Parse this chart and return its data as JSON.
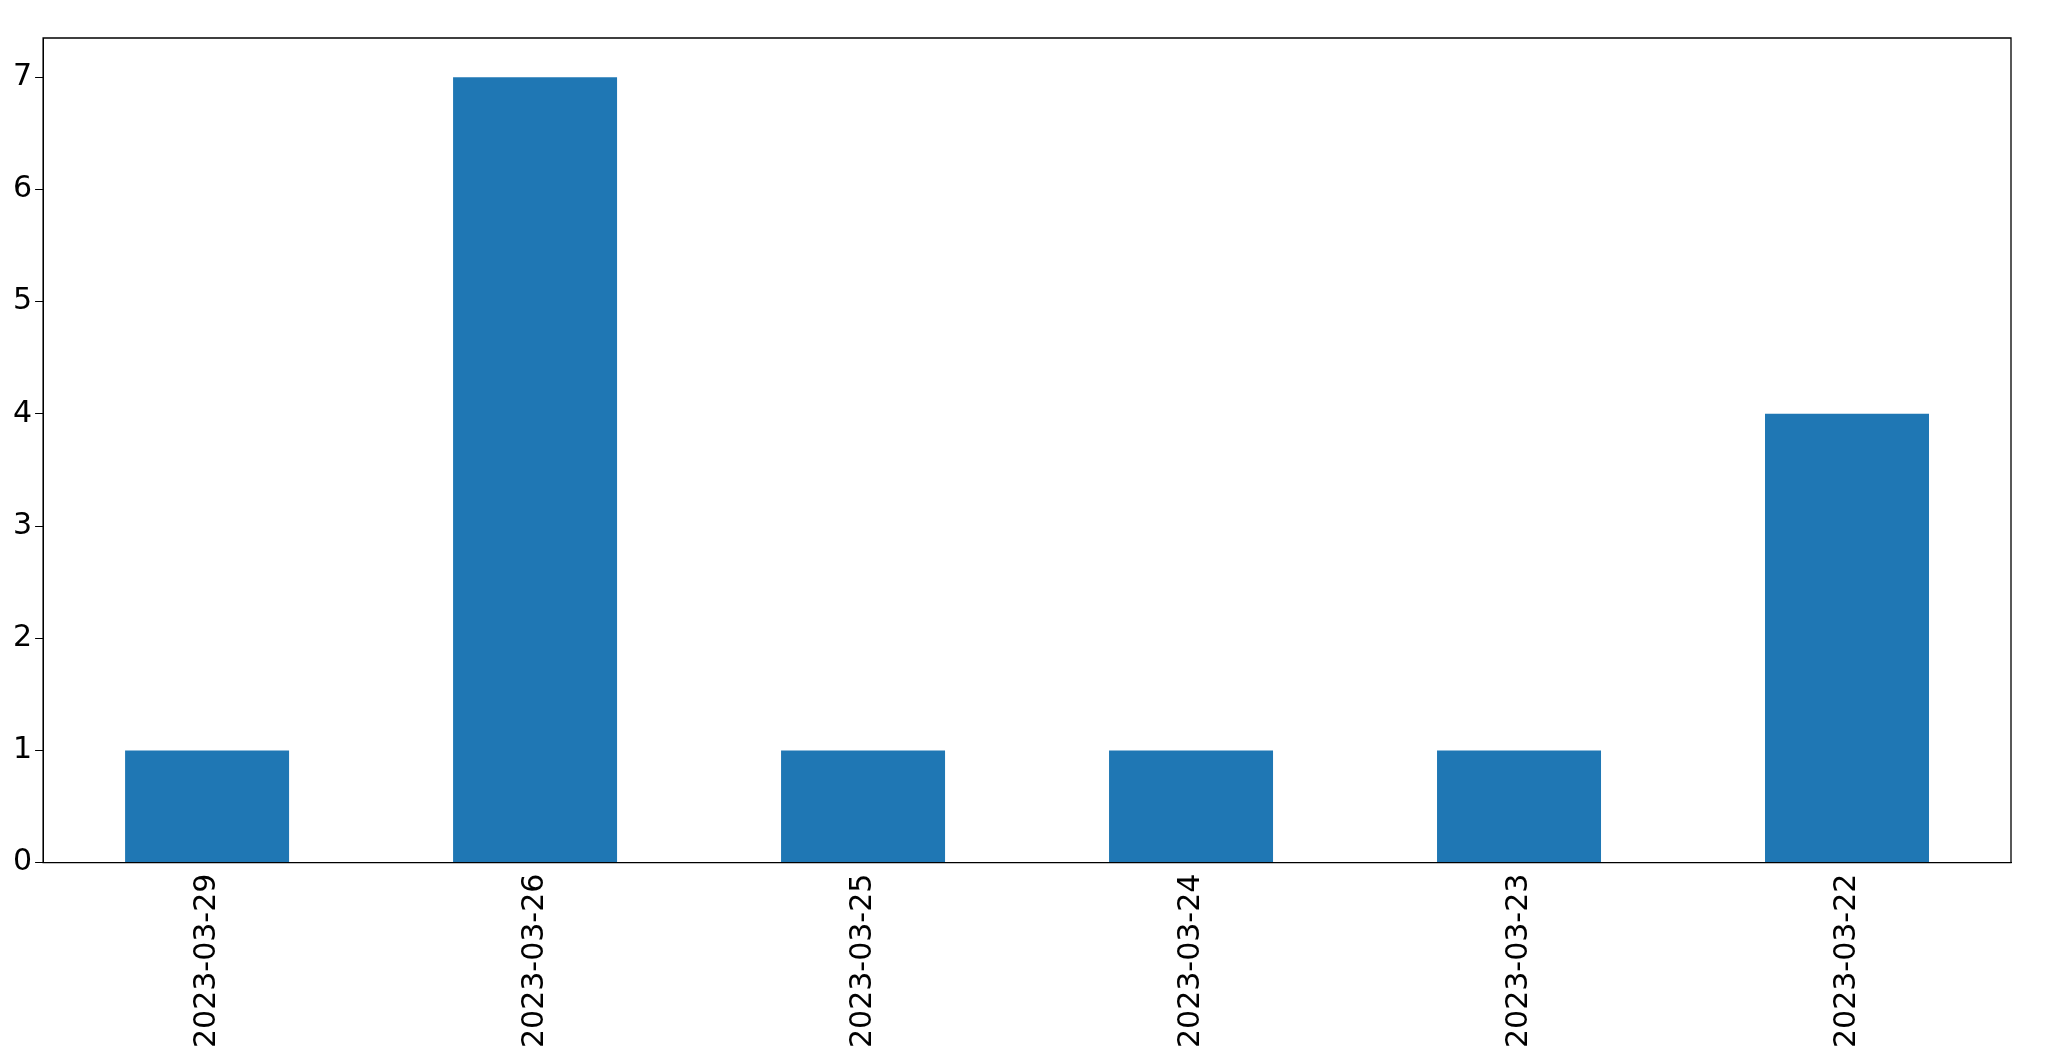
{
  "chart_data": {
    "type": "bar",
    "categories": [
      "2023-03-29",
      "2023-03-26",
      "2023-03-25",
      "2023-03-24",
      "2023-03-23",
      "2023-03-22"
    ],
    "values": [
      1,
      7,
      1,
      1,
      1,
      4
    ],
    "color": "#1f77b4",
    "ylim": [
      0,
      7.35
    ],
    "yticks": [
      0,
      1,
      2,
      3,
      4,
      5,
      6,
      7
    ],
    "grid": false,
    "legend": false
  }
}
